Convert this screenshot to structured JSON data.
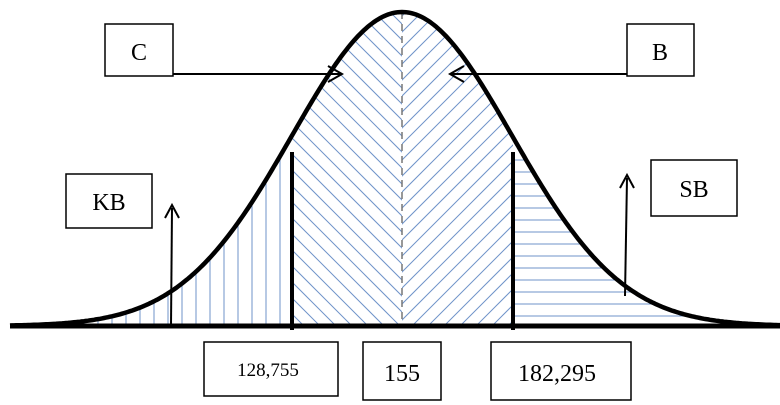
{
  "labels": {
    "c": "C",
    "b": "B",
    "kb": "KB",
    "sb": "SB"
  },
  "ticks": {
    "left": "128,755",
    "center": "155",
    "right": "182,295"
  },
  "colors": {
    "curve": "#000000",
    "hatch": "#6f93c9",
    "center_line": "#777777"
  }
}
